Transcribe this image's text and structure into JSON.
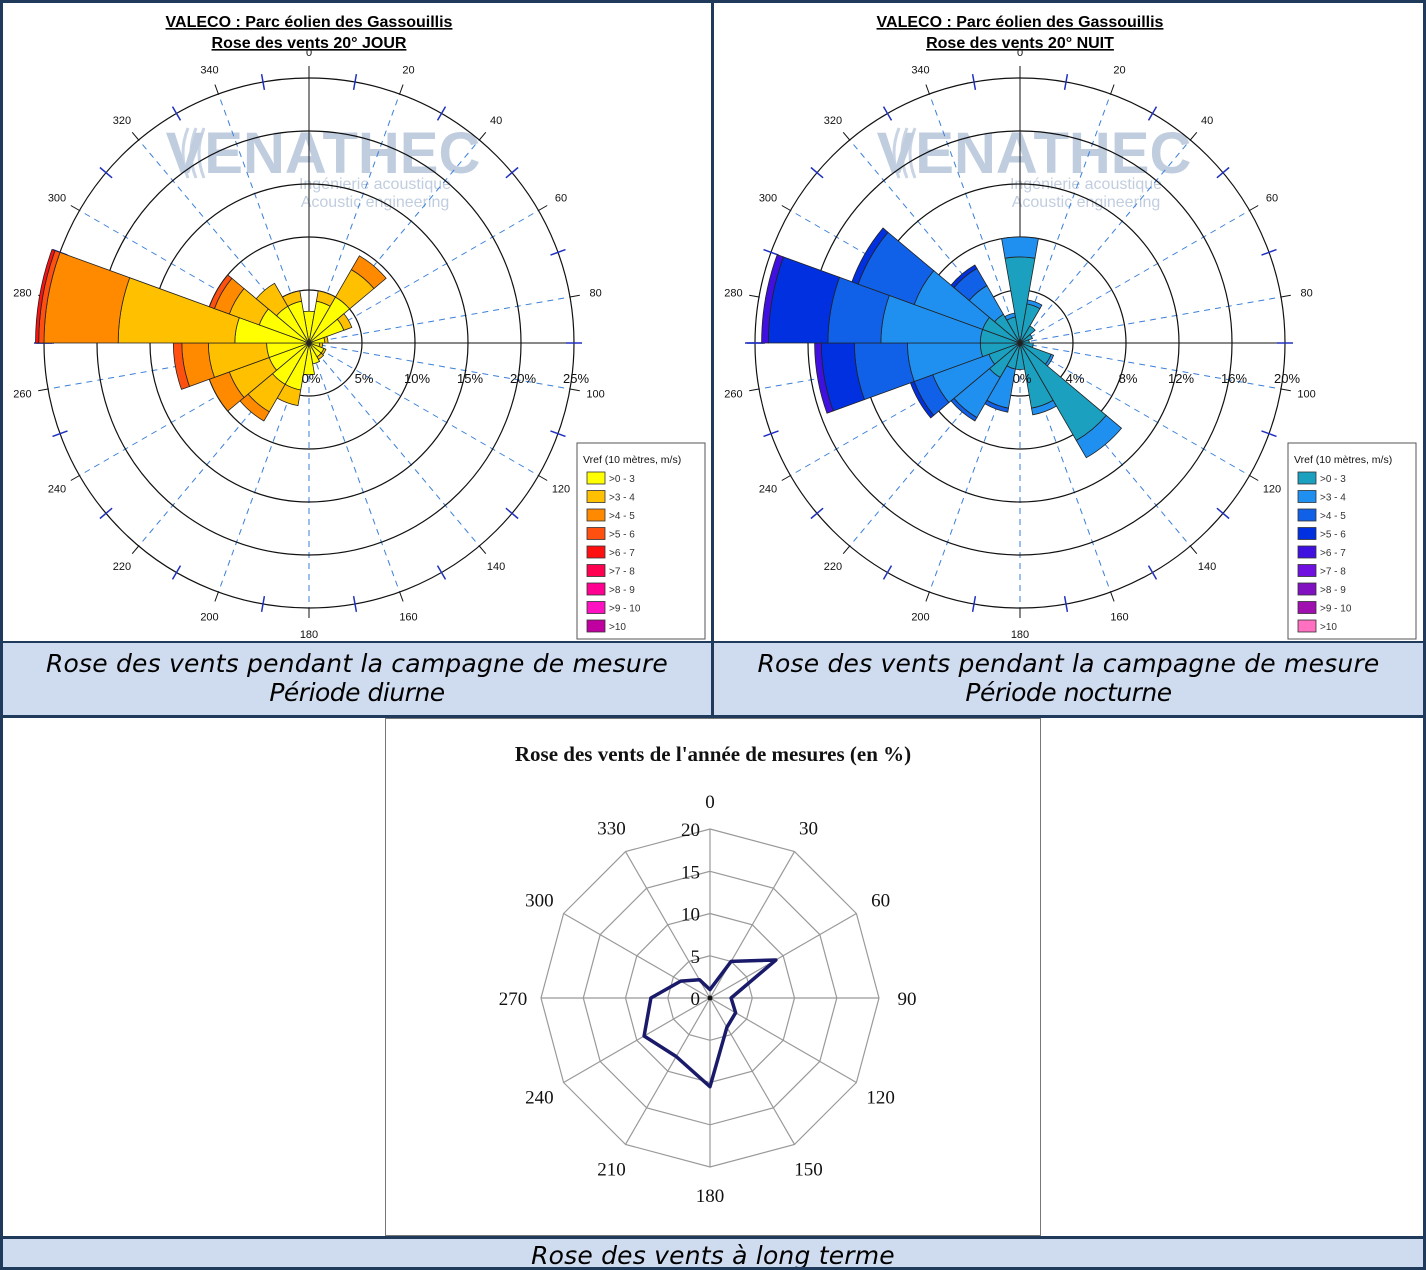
{
  "panels": [
    {
      "id": "jour",
      "title_line1": "VALECO : Parc éolien des Gassouillis",
      "title_line2": "Rose des vents 20° JOUR",
      "caption_line1": "Rose des vents pendant la campagne de mesure",
      "caption_line2": "Période diurne"
    },
    {
      "id": "nuit",
      "title_line1": "VALECO : Parc éolien des Gassouillis",
      "title_line2": "Rose des vents 20°  NUIT",
      "caption_line1": "Rose des vents pendant la campagne de mesure",
      "caption_line2": "Période nocturne"
    }
  ],
  "watermark": {
    "brand": "VENATHEC",
    "line1": "Ingénierie acoustique",
    "line2": "Acoustic engineering"
  },
  "long_term_caption": "Rose des vents à long terme",
  "chart_data": [
    {
      "type": "stacked-polar-bar",
      "title": "VALECO : Parc éolien des Gassouillis — Rose des vents 20° JOUR",
      "direction_ticks": [
        0,
        20,
        40,
        60,
        80,
        100,
        120,
        140,
        160,
        180,
        200,
        220,
        240,
        260,
        280,
        300,
        320,
        340
      ],
      "radial_ticks": [
        "0%",
        "5%",
        "10%",
        "15%",
        "20%",
        "25%"
      ],
      "rmax": 25,
      "legend_title": "Vref (10 mètres, m/s)",
      "legend": [
        ">0 - 3",
        ">3 - 4",
        ">4 - 5",
        ">5 - 6",
        ">6 - 7",
        ">7 - 8",
        ">8 - 9",
        ">9 - 10",
        ">10"
      ],
      "colors": [
        "#ffff00",
        "#ffc000",
        "#ff8a00",
        "#ff5010",
        "#ff1010",
        "#ff0050",
        "#ff0090",
        "#ff10c0",
        "#c000a0"
      ],
      "directions": [
        0,
        20,
        40,
        60,
        80,
        100,
        120,
        140,
        160,
        180,
        200,
        220,
        240,
        260,
        280,
        300,
        320,
        340
      ],
      "values": [
        [
          3,
          0,
          0,
          0,
          0,
          0,
          0,
          0,
          0
        ],
        [
          4,
          1,
          0,
          0,
          0,
          0,
          0,
          0,
          0
        ],
        [
          5,
          3,
          1.5,
          0,
          0,
          0,
          0,
          0,
          0
        ],
        [
          3.5,
          0.8,
          0,
          0,
          0,
          0,
          0,
          0,
          0
        ],
        [
          1.5,
          0.3,
          0,
          0,
          0,
          0,
          0,
          0,
          0
        ],
        [
          1,
          0.3,
          0,
          0,
          0,
          0,
          0,
          0,
          0
        ],
        [
          1.5,
          0.2,
          0,
          0,
          0,
          0,
          0,
          0,
          0
        ],
        [
          1.5,
          0.3,
          0,
          0,
          0,
          0,
          0,
          0,
          0
        ],
        [
          2,
          0,
          0,
          0,
          0,
          0,
          0,
          0,
          0
        ],
        [
          3,
          0,
          0,
          0,
          0,
          0,
          0,
          0,
          0
        ],
        [
          4.5,
          1.5,
          0,
          0,
          0,
          0,
          0,
          0,
          0
        ],
        [
          4.5,
          3,
          1,
          0,
          0,
          0,
          0,
          0,
          0
        ],
        [
          4,
          4,
          2,
          0,
          0,
          0,
          0,
          0,
          0
        ],
        [
          4,
          5.5,
          2.5,
          0.8,
          0,
          0,
          0,
          0,
          0
        ],
        [
          7,
          11,
          7,
          0.5,
          0.3,
          0,
          0,
          0,
          0
        ],
        [
          5,
          3,
          1.5,
          0.5,
          0,
          0,
          0,
          0,
          0
        ],
        [
          4,
          2.5,
          0,
          0,
          0,
          0,
          0,
          0,
          0
        ],
        [
          4,
          1,
          0,
          0,
          0,
          0,
          0,
          0,
          0
        ]
      ]
    },
    {
      "type": "stacked-polar-bar",
      "title": "VALECO : Parc éolien des Gassouillis — Rose des vents 20°  NUIT",
      "direction_ticks": [
        0,
        20,
        40,
        60,
        80,
        100,
        120,
        140,
        160,
        180,
        200,
        220,
        240,
        260,
        280,
        300,
        320,
        340
      ],
      "radial_ticks": [
        "0%",
        "4%",
        "8%",
        "12%",
        "16%",
        "20%"
      ],
      "rmax": 20,
      "legend_title": "Vref (10 mètres, m/s)",
      "legend": [
        ">0 - 3",
        ">3 - 4",
        ">4 - 5",
        ">5 - 6",
        ">6 - 7",
        ">7 - 8",
        ">8 - 9",
        ">9 - 10",
        ">10"
      ],
      "colors": [
        "#1ba0c0",
        "#2090f0",
        "#1060e8",
        "#0030e0",
        "#4010e0",
        "#7010e0",
        "#8010c0",
        "#a010b0",
        "#ff70c0"
      ],
      "directions": [
        0,
        20,
        40,
        60,
        80,
        100,
        120,
        140,
        160,
        180,
        200,
        220,
        240,
        260,
        280,
        300,
        320,
        340
      ],
      "values": [
        [
          6.5,
          1.5,
          0,
          0,
          0,
          0,
          0,
          0,
          0
        ],
        [
          3,
          0.3,
          0,
          0,
          0,
          0,
          0,
          0,
          0
        ],
        [
          1.5,
          0,
          0,
          0,
          0,
          0,
          0,
          0,
          0
        ],
        [
          1,
          0,
          0,
          0,
          0,
          0,
          0,
          0,
          0
        ],
        [
          0.7,
          0,
          0,
          0,
          0,
          0,
          0,
          0,
          0
        ],
        [
          1,
          0,
          0,
          0,
          0,
          0,
          0,
          0,
          0
        ],
        [
          2.5,
          0.2,
          0,
          0,
          0,
          0,
          0,
          0,
          0
        ],
        [
          8.5,
          1.5,
          0,
          0,
          0,
          0,
          0,
          0,
          0
        ],
        [
          5,
          0.5,
          0,
          0,
          0,
          0,
          0,
          0,
          0
        ],
        [
          2,
          0,
          0,
          0,
          0,
          0,
          0,
          0,
          0
        ],
        [
          2,
          3,
          0.3,
          0,
          0,
          0,
          0,
          0,
          0
        ],
        [
          3,
          3.5,
          0.3,
          0,
          0,
          0,
          0,
          0,
          0
        ],
        [
          2.5,
          4.5,
          1.5,
          0.3,
          0,
          0,
          0,
          0,
          0
        ],
        [
          3,
          5.5,
          4,
          2.5,
          0.5,
          0,
          0,
          0,
          0
        ],
        [
          3,
          7.5,
          4,
          4.5,
          0.5,
          0,
          0,
          0,
          0
        ],
        [
          3,
          5.5,
          4.5,
          0.5,
          0,
          0,
          0,
          0,
          0
        ],
        [
          2.5,
          2.5,
          1.5,
          0.3,
          0,
          0,
          0,
          0,
          0
        ],
        [
          2,
          0.3,
          0,
          0,
          0,
          0,
          0,
          0,
          0
        ]
      ]
    },
    {
      "type": "radar",
      "title": "Rose des vents de l'année de mesures (en %)",
      "categories": [
        "0",
        "30",
        "60",
        "90",
        "120",
        "150",
        "180",
        "210",
        "240",
        "270",
        "300",
        "330"
      ],
      "directions": [
        0,
        30,
        60,
        90,
        120,
        150,
        180,
        210,
        240,
        270,
        300,
        330
      ],
      "radial_ticks": [
        "0",
        "5",
        "10",
        "15",
        "20"
      ],
      "rmax": 20,
      "values": [
        1,
        5,
        9,
        2.5,
        3.5,
        4,
        10.5,
        8,
        9,
        7,
        4,
        2.5
      ],
      "line_color": "#1a1a6a"
    }
  ]
}
